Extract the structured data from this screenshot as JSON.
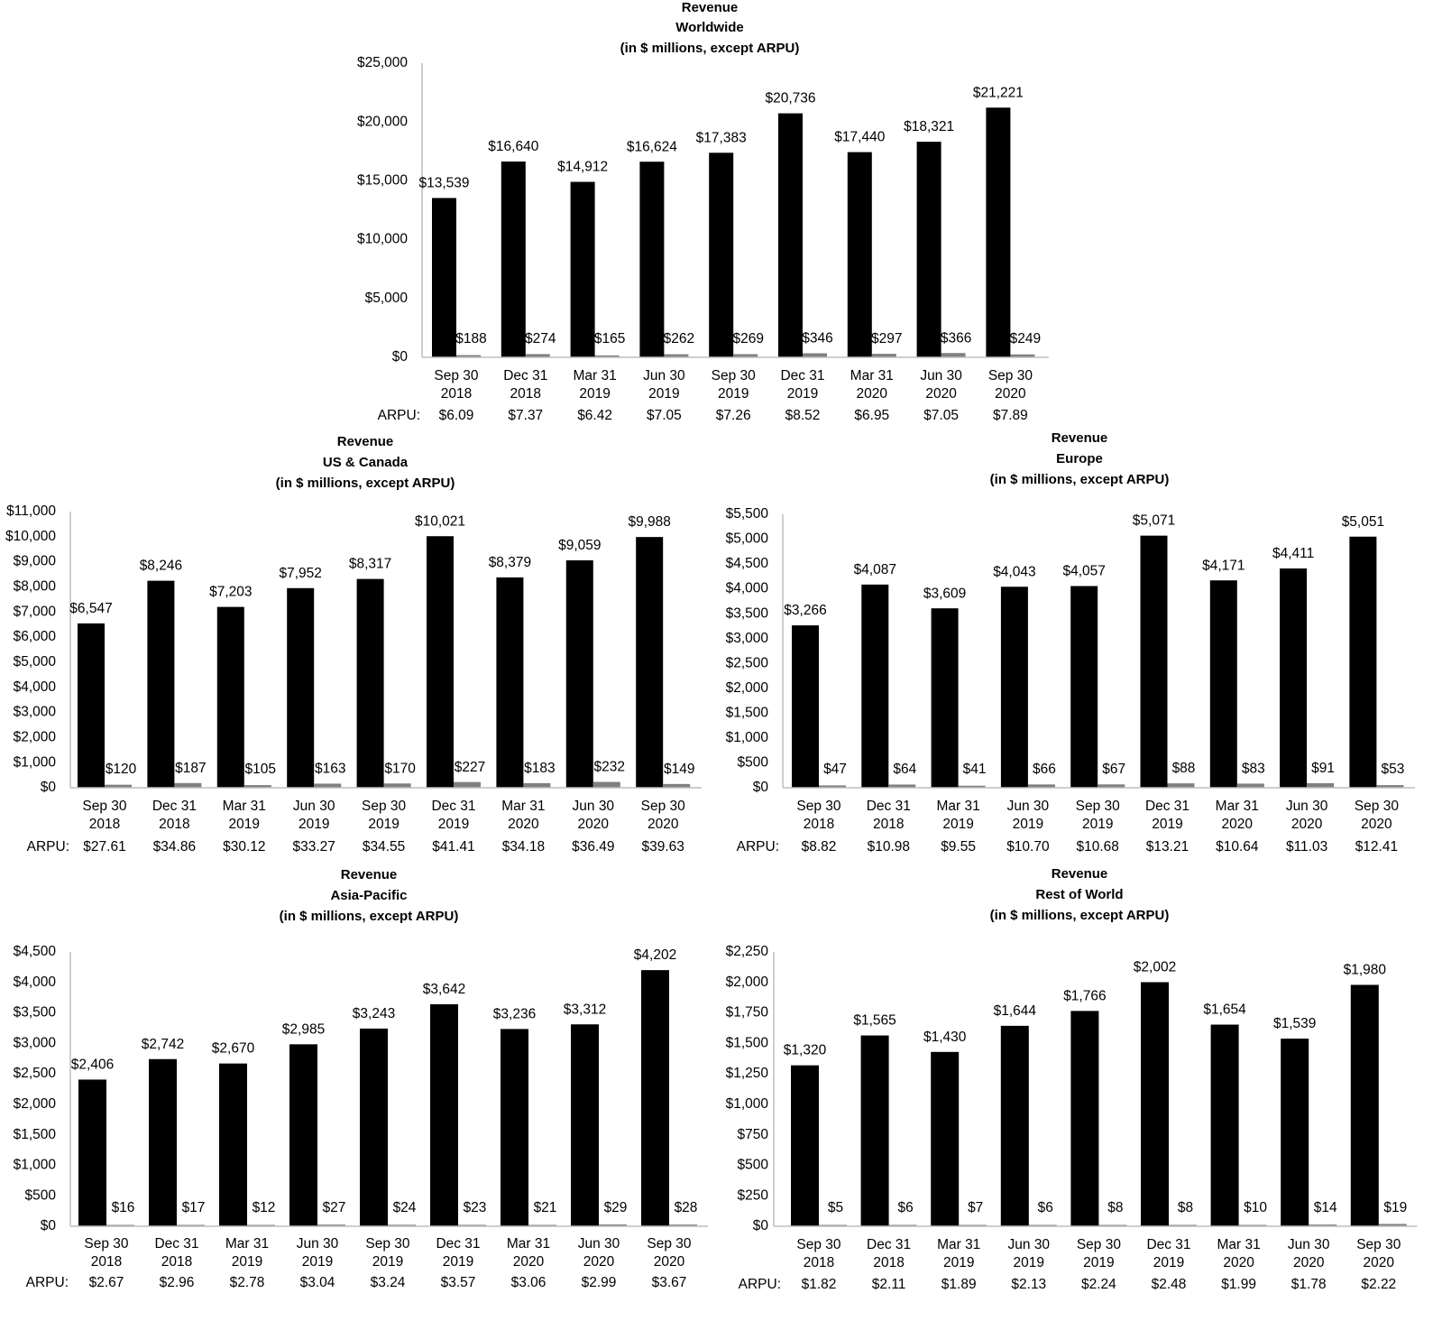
{
  "chart_data": [
    {
      "type": "bar",
      "title": [
        "Revenue",
        "Worldwide",
        "(in $ millions, except ARPU)"
      ],
      "categories": [
        [
          "Sep 30",
          "2018"
        ],
        [
          "Dec 31",
          "2018"
        ],
        [
          "Mar 31",
          "2019"
        ],
        [
          "Jun 30",
          "2019"
        ],
        [
          "Sep 30",
          "2019"
        ],
        [
          "Dec 31",
          "2019"
        ],
        [
          "Mar 31",
          "2020"
        ],
        [
          "Jun 30",
          "2020"
        ],
        [
          "Sep 30",
          "2020"
        ]
      ],
      "series": [
        {
          "color": "#000000",
          "values": [
            13539,
            16640,
            14912,
            16624,
            17383,
            20736,
            17440,
            18321,
            21221
          ]
        },
        {
          "color": "#808080",
          "values": [
            188,
            274,
            165,
            262,
            269,
            346,
            297,
            366,
            249
          ]
        }
      ],
      "ylim": [
        0,
        25000
      ],
      "ytick_labels": [
        "$0",
        "$5,000",
        "$10,000",
        "$15,000",
        "$20,000",
        "$25,000"
      ],
      "arpu_label": "ARPU:",
      "arpu": [
        "$6.09",
        "$7.37",
        "$6.42",
        "$7.05",
        "$7.26",
        "$8.52",
        "$6.95",
        "$7.05",
        "$7.89"
      ],
      "grid": false
    },
    {
      "type": "bar",
      "title": [
        "Revenue",
        "US & Canada",
        "(in $ millions, except ARPU)"
      ],
      "categories": [
        [
          "Sep 30",
          "2018"
        ],
        [
          "Dec 31",
          "2018"
        ],
        [
          "Mar 31",
          "2019"
        ],
        [
          "Jun 30",
          "2019"
        ],
        [
          "Sep 30",
          "2019"
        ],
        [
          "Dec 31",
          "2019"
        ],
        [
          "Mar 31",
          "2020"
        ],
        [
          "Jun 30",
          "2020"
        ],
        [
          "Sep 30",
          "2020"
        ]
      ],
      "series": [
        {
          "color": "#000000",
          "values": [
            6547,
            8246,
            7203,
            7952,
            8317,
            10021,
            8379,
            9059,
            9988
          ]
        },
        {
          "color": "#808080",
          "values": [
            120,
            187,
            105,
            163,
            170,
            227,
            183,
            232,
            149
          ]
        }
      ],
      "ylim": [
        0,
        11000
      ],
      "ytick_labels": [
        "$0",
        "$1,000",
        "$2,000",
        "$3,000",
        "$4,000",
        "$5,000",
        "$6,000",
        "$7,000",
        "$8,000",
        "$9,000",
        "$10,000",
        "$11,000"
      ],
      "arpu_label": "ARPU:",
      "arpu": [
        "$27.61",
        "$34.86",
        "$30.12",
        "$33.27",
        "$34.55",
        "$41.41",
        "$34.18",
        "$36.49",
        "$39.63"
      ],
      "grid": false
    },
    {
      "type": "bar",
      "title": [
        "Revenue",
        "Europe",
        "(in $ millions, except ARPU)"
      ],
      "categories": [
        [
          "Sep 30",
          "2018"
        ],
        [
          "Dec 31",
          "2018"
        ],
        [
          "Mar 31",
          "2019"
        ],
        [
          "Jun 30",
          "2019"
        ],
        [
          "Sep 30",
          "2019"
        ],
        [
          "Dec 31",
          "2019"
        ],
        [
          "Mar 31",
          "2020"
        ],
        [
          "Jun 30",
          "2020"
        ],
        [
          "Sep 30",
          "2020"
        ]
      ],
      "series": [
        {
          "color": "#000000",
          "values": [
            3266,
            4087,
            3609,
            4043,
            4057,
            5071,
            4171,
            4411,
            5051
          ]
        },
        {
          "color": "#808080",
          "values": [
            47,
            64,
            41,
            66,
            67,
            88,
            83,
            91,
            53
          ]
        }
      ],
      "ylim": [
        0,
        5500
      ],
      "ytick_labels": [
        "$0",
        "$500",
        "$1,000",
        "$1,500",
        "$2,000",
        "$2,500",
        "$3,000",
        "$3,500",
        "$4,000",
        "$4,500",
        "$5,000",
        "$5,500"
      ],
      "arpu_label": "ARPU:",
      "arpu": [
        "$8.82",
        "$10.98",
        "$9.55",
        "$10.70",
        "$10.68",
        "$13.21",
        "$10.64",
        "$11.03",
        "$12.41"
      ],
      "grid": false
    },
    {
      "type": "bar",
      "title": [
        "Revenue",
        "Asia-Pacific",
        "(in $ millions, except ARPU)"
      ],
      "categories": [
        [
          "Sep 30",
          "2018"
        ],
        [
          "Dec 31",
          "2018"
        ],
        [
          "Mar 31",
          "2019"
        ],
        [
          "Jun 30",
          "2019"
        ],
        [
          "Sep 30",
          "2019"
        ],
        [
          "Dec 31",
          "2019"
        ],
        [
          "Mar 31",
          "2020"
        ],
        [
          "Jun 30",
          "2020"
        ],
        [
          "Sep 30",
          "2020"
        ]
      ],
      "series": [
        {
          "color": "#000000",
          "values": [
            2406,
            2742,
            2670,
            2985,
            3243,
            3642,
            3236,
            3312,
            4202
          ]
        },
        {
          "color": "#808080",
          "values": [
            16,
            17,
            12,
            27,
            24,
            23,
            21,
            29,
            28
          ]
        }
      ],
      "ylim": [
        0,
        4500
      ],
      "ytick_labels": [
        "$0",
        "$500",
        "$1,000",
        "$1,500",
        "$2,000",
        "$2,500",
        "$3,000",
        "$3,500",
        "$4,000",
        "$4,500"
      ],
      "arpu_label": "ARPU:",
      "arpu": [
        "$2.67",
        "$2.96",
        "$2.78",
        "$3.04",
        "$3.24",
        "$3.57",
        "$3.06",
        "$2.99",
        "$3.67"
      ],
      "grid": false
    },
    {
      "type": "bar",
      "title": [
        "Revenue",
        "Rest of World",
        "(in $ millions, except ARPU)"
      ],
      "categories": [
        [
          "Sep 30",
          "2018"
        ],
        [
          "Dec 31",
          "2018"
        ],
        [
          "Mar 31",
          "2019"
        ],
        [
          "Jun 30",
          "2019"
        ],
        [
          "Sep 30",
          "2019"
        ],
        [
          "Dec 31",
          "2019"
        ],
        [
          "Mar 31",
          "2020"
        ],
        [
          "Jun 30",
          "2020"
        ],
        [
          "Sep 30",
          "2020"
        ]
      ],
      "series": [
        {
          "color": "#000000",
          "values": [
            1320,
            1565,
            1430,
            1644,
            1766,
            2002,
            1654,
            1539,
            1980
          ]
        },
        {
          "color": "#808080",
          "values": [
            5,
            6,
            7,
            6,
            8,
            8,
            10,
            14,
            19
          ]
        }
      ],
      "ylim": [
        0,
        2250
      ],
      "ytick_labels": [
        "$0",
        "$250",
        "$500",
        "$750",
        "$1,000",
        "$1,250",
        "$1,500",
        "$1,750",
        "$2,000",
        "$2,250"
      ],
      "arpu_label": "ARPU:",
      "arpu": [
        "$1.82",
        "$2.11",
        "$1.89",
        "$2.13",
        "$2.24",
        "$2.48",
        "$1.99",
        "$1.78",
        "$2.22"
      ],
      "grid": false
    }
  ]
}
